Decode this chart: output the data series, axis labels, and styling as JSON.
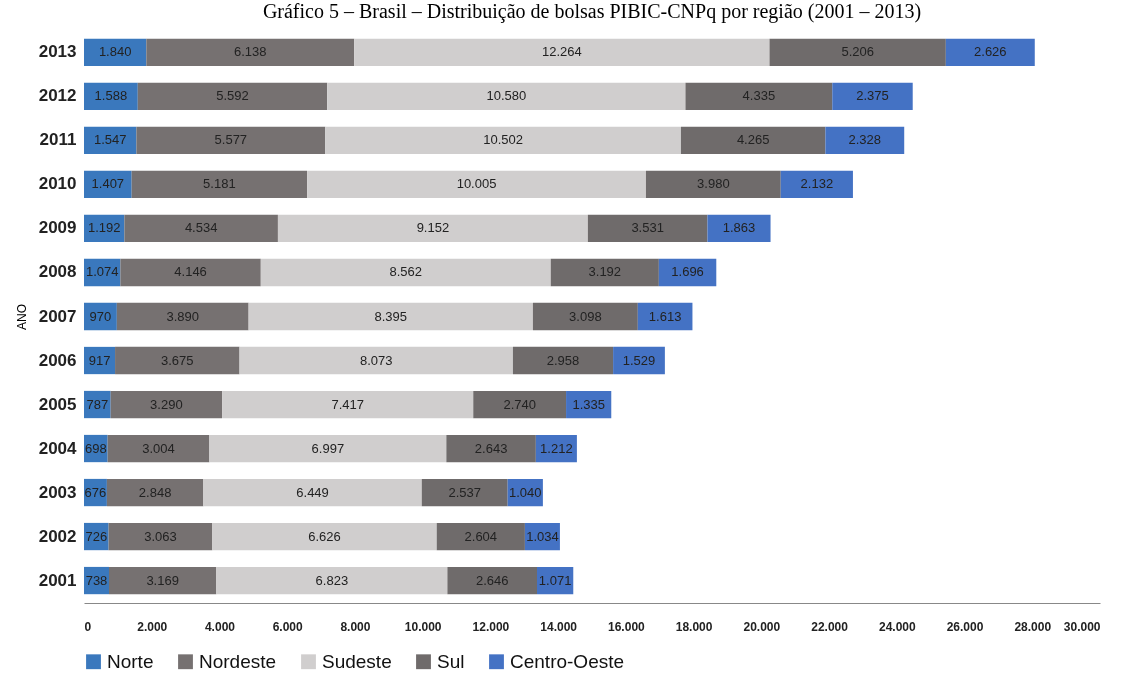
{
  "chart_data": {
    "type": "bar",
    "orientation": "horizontal",
    "stacked": true,
    "title": "Gráfico 5 – Brasil – Distribuição de bolsas PIBIC-CNPq por região (2001 – 2013)",
    "ylabel": "ANO",
    "legend": "bottom",
    "grid": false,
    "categories": [
      "2013",
      "2012",
      "2011",
      "2010",
      "2009",
      "2008",
      "2007",
      "2006",
      "2005",
      "2004",
      "2003",
      "2002",
      "2001"
    ],
    "xlim": [
      0,
      30000
    ],
    "xticks": [
      0,
      {
        "value": 2000,
        "label": "2.000"
      },
      {
        "value": 4000,
        "label": "4.000"
      },
      {
        "value": 6000,
        "label": "6.000"
      },
      {
        "value": 8000,
        "label": "8.000"
      },
      {
        "value": 10000,
        "label": "10.000"
      },
      {
        "value": 12000,
        "label": "12.000"
      },
      {
        "value": 14000,
        "label": "14.000"
      },
      {
        "value": 16000,
        "label": "16.000"
      },
      {
        "value": 18000,
        "label": "18.000"
      },
      {
        "value": 20000,
        "label": "20.000"
      },
      {
        "value": 22000,
        "label": "22.000"
      },
      {
        "value": 24000,
        "label": "24.000"
      },
      {
        "value": 26000,
        "label": "26.000"
      },
      {
        "value": 28000,
        "label": "28.000"
      },
      {
        "value": 30000,
        "label": "30.000"
      }
    ],
    "series": [
      {
        "name": "Norte",
        "color": "#3a78bd",
        "values": [
          1840,
          1588,
          1547,
          1407,
          1192,
          1074,
          970,
          917,
          787,
          698,
          676,
          726,
          738
        ],
        "value_labels": [
          "1.840",
          "1.588",
          "1.547",
          "1.407",
          "1.192",
          "1.074",
          "970",
          "917",
          "787",
          "698",
          "676",
          "726",
          "738"
        ]
      },
      {
        "name": "Nordeste",
        "color": "#767171",
        "values": [
          6138,
          5592,
          5577,
          5181,
          4534,
          4146,
          3890,
          3675,
          3290,
          3004,
          2848,
          3063,
          3169
        ],
        "value_labels": [
          "6.138",
          "5.592",
          "5.577",
          "5.181",
          "4.534",
          "4.146",
          "3.890",
          "3.675",
          "3.290",
          "3.004",
          "2.848",
          "3.063",
          "3.169"
        ]
      },
      {
        "name": "Sudeste",
        "color": "#d0cece",
        "values": [
          12264,
          10580,
          10502,
          10005,
          9152,
          8562,
          8395,
          8073,
          7417,
          6997,
          6449,
          6626,
          6823
        ],
        "value_labels": [
          "12.264",
          "10.580",
          "10.502",
          "10.005",
          "9.152",
          "8.562",
          "8.395",
          "8.073",
          "7.417",
          "6.997",
          "6.449",
          "6.626",
          "6.823"
        ]
      },
      {
        "name": "Sul",
        "color": "#6f6b6b",
        "values": [
          5206,
          4335,
          4265,
          3980,
          3531,
          3192,
          3098,
          2958,
          2740,
          2643,
          2537,
          2604,
          2646
        ],
        "value_labels": [
          "5.206",
          "4.335",
          "4.265",
          "3.980",
          "3.531",
          "3.192",
          "3.098",
          "2.958",
          "2.740",
          "2.643",
          "2.537",
          "2.604",
          "2.646"
        ]
      },
      {
        "name": "Centro-Oeste",
        "color": "#4472c4",
        "values": [
          2626,
          2375,
          2328,
          2132,
          1863,
          1696,
          1613,
          1529,
          1335,
          1212,
          1040,
          1034,
          1071
        ],
        "value_labels": [
          "2.626",
          "2.375",
          "2.328",
          "2.132",
          "1.863",
          "1.696",
          "1.613",
          "1.529",
          "1.335",
          "1.212",
          "1.040",
          "1.034",
          "1.071"
        ]
      }
    ]
  }
}
